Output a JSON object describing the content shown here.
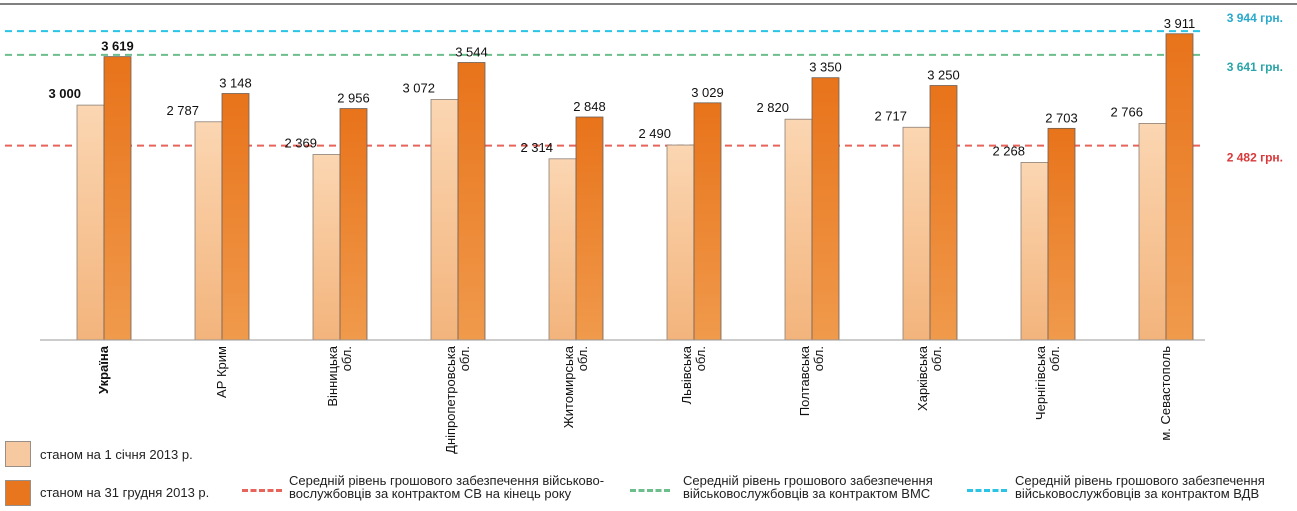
{
  "chart_data": {
    "type": "bar",
    "categories": [
      "Україна",
      "АР Крим",
      "Вінницька обл.",
      "Дніпропетровська обл.",
      "Житомирська обл.",
      "Львівська обл.",
      "Полтавська обл.",
      "Харківська обл.",
      "Чернігівська обл.",
      "м. Севастополь"
    ],
    "category_lines": [
      [
        "Україна"
      ],
      [
        "АР Крим"
      ],
      [
        "Вінницька",
        "обл."
      ],
      [
        "Дніпропетровська",
        "обл."
      ],
      [
        "Житомирська",
        "обл."
      ],
      [
        "Львівська",
        "обл."
      ],
      [
        "Полтавська",
        "обл."
      ],
      [
        "Харківська",
        "обл."
      ],
      [
        "Чернігівська",
        "обл."
      ],
      [
        "м. Севастополь"
      ]
    ],
    "series": [
      {
        "name": "станом на 1 січня 2013 р.",
        "values": [
          3000,
          2787,
          2369,
          3072,
          2314,
          2490,
          2820,
          2717,
          2268,
          2766
        ],
        "labels": [
          "3 000",
          "2 787",
          "2 369",
          "3 072",
          "2 314",
          "2 490",
          "2 820",
          "2 717",
          "2 268",
          "2 766"
        ]
      },
      {
        "name": "станом на 31 грудня 2013 р.",
        "values": [
          3619,
          3148,
          2956,
          3544,
          2848,
          3029,
          3350,
          3250,
          2703,
          3911
        ],
        "labels": [
          "3 619",
          "3 148",
          "2 956",
          "3 544",
          "2 848",
          "3 029",
          "3 350",
          "3 250",
          "2 703",
          "3 911"
        ]
      }
    ],
    "reference_lines": [
      {
        "value": 3944,
        "label": "3 944 грн.",
        "color": "#29c4e6",
        "legend": [
          "Середній рівень грошового забезпечення",
          "військовослужбовців за контрактом ВДВ"
        ]
      },
      {
        "value": 3641,
        "label": "3 641 грн.",
        "color": "#6cbf8c",
        "legend": [
          "Середній рівень грошового забезпечення",
          "військовослужбовців за контрактом ВМС"
        ]
      },
      {
        "value": 2482,
        "label": "2 482 грн.",
        "color": "#e8635a",
        "legend": [
          "Середній рівень грошового забезпечення військово-",
          "вослужбовців за контрактом СВ на кінець року"
        ]
      }
    ],
    "label_colors": [
      "#29a9cc",
      "#2aa4a8",
      "#d8383a"
    ],
    "colors": {
      "series1": "#f7c9a0",
      "series2": "#e8761e"
    }
  }
}
